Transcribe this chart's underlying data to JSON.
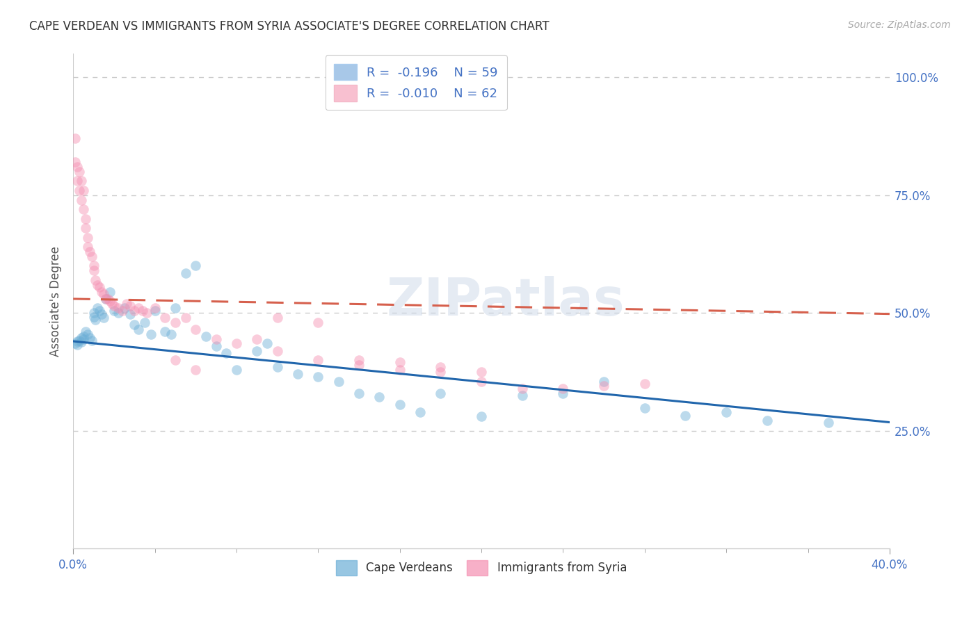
{
  "title": "CAPE VERDEAN VS IMMIGRANTS FROM SYRIA ASSOCIATE'S DEGREE CORRELATION CHART",
  "source": "Source: ZipAtlas.com",
  "ylabel": "Associate's Degree",
  "legend_blue_R": -0.196,
  "legend_blue_N": 59,
  "legend_blue_label": "Cape Verdeans",
  "legend_blue_patch_color": "#a8c8e8",
  "legend_pink_R": -0.01,
  "legend_pink_N": 62,
  "legend_pink_label": "Immigrants from Syria",
  "legend_pink_patch_color": "#f8c0d0",
  "blue_x": [
    0.001,
    0.002,
    0.002,
    0.003,
    0.004,
    0.004,
    0.005,
    0.005,
    0.006,
    0.007,
    0.008,
    0.009,
    0.01,
    0.01,
    0.011,
    0.012,
    0.013,
    0.014,
    0.015,
    0.016,
    0.018,
    0.02,
    0.022,
    0.025,
    0.028,
    0.03,
    0.032,
    0.035,
    0.038,
    0.04,
    0.045,
    0.048,
    0.05,
    0.055,
    0.06,
    0.065,
    0.07,
    0.075,
    0.08,
    0.09,
    0.095,
    0.1,
    0.11,
    0.12,
    0.13,
    0.14,
    0.15,
    0.16,
    0.17,
    0.18,
    0.2,
    0.22,
    0.24,
    0.26,
    0.28,
    0.3,
    0.32,
    0.34,
    0.37
  ],
  "blue_y": [
    0.435,
    0.44,
    0.432,
    0.442,
    0.448,
    0.438,
    0.45,
    0.445,
    0.46,
    0.455,
    0.448,
    0.442,
    0.5,
    0.492,
    0.485,
    0.51,
    0.505,
    0.498,
    0.49,
    0.53,
    0.545,
    0.505,
    0.5,
    0.51,
    0.498,
    0.475,
    0.465,
    0.48,
    0.455,
    0.505,
    0.46,
    0.455,
    0.51,
    0.585,
    0.6,
    0.45,
    0.43,
    0.415,
    0.38,
    0.42,
    0.435,
    0.385,
    0.37,
    0.365,
    0.355,
    0.33,
    0.322,
    0.305,
    0.29,
    0.33,
    0.28,
    0.325,
    0.33,
    0.355,
    0.298,
    0.282,
    0.29,
    0.272,
    0.268
  ],
  "pink_x": [
    0.001,
    0.001,
    0.002,
    0.002,
    0.003,
    0.003,
    0.004,
    0.004,
    0.005,
    0.005,
    0.006,
    0.006,
    0.007,
    0.007,
    0.008,
    0.009,
    0.01,
    0.01,
    0.011,
    0.012,
    0.013,
    0.014,
    0.015,
    0.016,
    0.017,
    0.018,
    0.019,
    0.02,
    0.022,
    0.024,
    0.026,
    0.028,
    0.03,
    0.032,
    0.034,
    0.036,
    0.04,
    0.045,
    0.05,
    0.055,
    0.06,
    0.07,
    0.08,
    0.09,
    0.1,
    0.12,
    0.14,
    0.16,
    0.18,
    0.2,
    0.22,
    0.24,
    0.26,
    0.28,
    0.1,
    0.12,
    0.14,
    0.16,
    0.18,
    0.2,
    0.05,
    0.06
  ],
  "pink_y": [
    0.87,
    0.82,
    0.81,
    0.78,
    0.8,
    0.76,
    0.78,
    0.74,
    0.76,
    0.72,
    0.7,
    0.68,
    0.66,
    0.64,
    0.63,
    0.62,
    0.6,
    0.59,
    0.57,
    0.56,
    0.555,
    0.545,
    0.54,
    0.53,
    0.53,
    0.525,
    0.52,
    0.515,
    0.51,
    0.505,
    0.52,
    0.515,
    0.505,
    0.51,
    0.505,
    0.5,
    0.51,
    0.49,
    0.48,
    0.49,
    0.465,
    0.445,
    0.435,
    0.445,
    0.42,
    0.4,
    0.39,
    0.38,
    0.375,
    0.355,
    0.34,
    0.34,
    0.345,
    0.35,
    0.49,
    0.48,
    0.4,
    0.395,
    0.385,
    0.375,
    0.4,
    0.38
  ],
  "blue_trend_x": [
    0.0,
    0.4
  ],
  "blue_trend_y": [
    0.44,
    0.268
  ],
  "pink_trend_x": [
    0.0,
    0.4
  ],
  "pink_trend_y": [
    0.53,
    0.498
  ],
  "xlim": [
    0.0,
    0.4
  ],
  "ylim": [
    0.0,
    1.05
  ],
  "yticks": [
    0.0,
    0.25,
    0.5,
    0.75,
    1.0
  ],
  "ytick_right_labels": [
    "",
    "25.0%",
    "50.0%",
    "75.0%",
    "100.0%"
  ],
  "xticks_major": [
    0.0,
    0.4
  ],
  "xtick_major_labels": [
    "0.0%",
    "40.0%"
  ],
  "xticks_minor": [
    0.04,
    0.08,
    0.12,
    0.16,
    0.2,
    0.24,
    0.28,
    0.32,
    0.36
  ],
  "grid_color": "#cccccc",
  "grid_linestyle": "--",
  "watermark": "ZIPatlas",
  "scatter_size": 110,
  "scatter_alpha": 0.45,
  "blue_scatter_color": "#6baed6",
  "pink_scatter_color": "#f48fb1",
  "blue_line_color": "#2166ac",
  "pink_line_color": "#d6604d",
  "line_width": 2.2,
  "background_color": "#ffffff",
  "title_fontsize": 12,
  "source_fontsize": 10,
  "tick_label_color": "#4472c4",
  "ylabel_color": "#555555",
  "legend_label_color": "#4472c4"
}
